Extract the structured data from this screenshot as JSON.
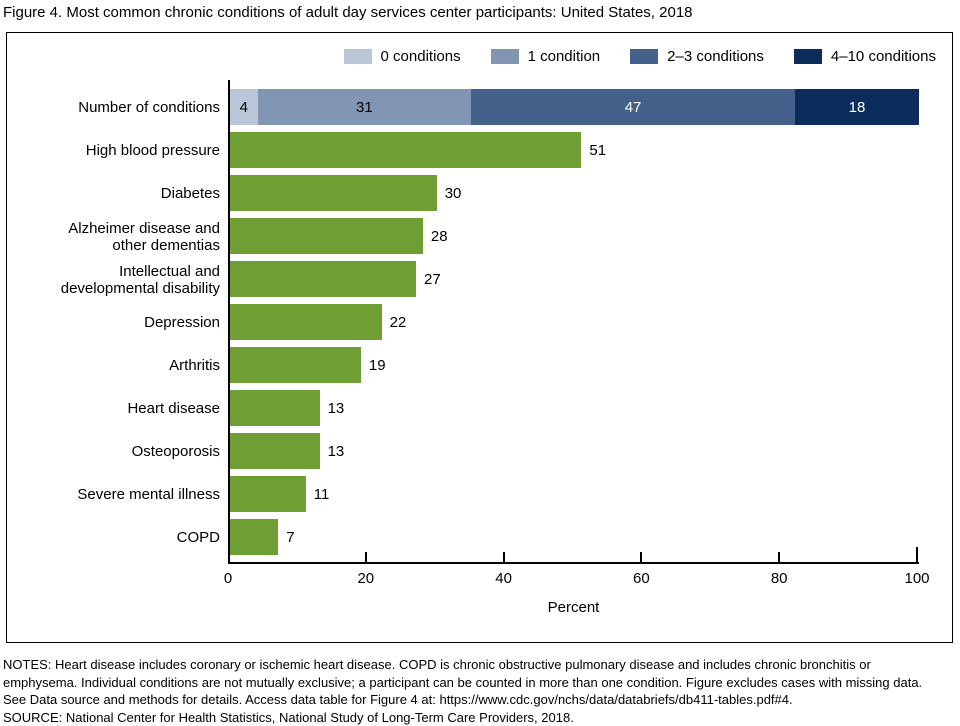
{
  "title": "Figure 4. Most common chronic conditions of adult day services center participants: United States, 2018",
  "legend": {
    "items": [
      {
        "label": "0 conditions",
        "color": "#b8c6d8"
      },
      {
        "label": "1 condition",
        "color": "#8296b3"
      },
      {
        "label": "2–3 conditions",
        "color": "#43618b"
      },
      {
        "label": "4–10 conditions",
        "color": "#0c2c5c"
      }
    ]
  },
  "chart_data": {
    "type": "bar",
    "orientation": "horizontal",
    "xlabel": "Percent",
    "xlim": [
      0,
      100
    ],
    "xticks": [
      0,
      20,
      40,
      60,
      80,
      100
    ],
    "bar_color": "#6f9e35",
    "stacked_row": {
      "label": "Number of conditions",
      "segments": [
        {
          "name": "0 conditions",
          "value": 4,
          "color": "#b8c6d8",
          "text_color": "#000000"
        },
        {
          "name": "1 condition",
          "value": 31,
          "color": "#8296b3",
          "text_color": "#000000"
        },
        {
          "name": "2–3 conditions",
          "value": 47,
          "color": "#43618b",
          "text_color": "#ffffff"
        },
        {
          "name": "4–10 conditions",
          "value": 18,
          "color": "#0c2c5c",
          "text_color": "#ffffff"
        }
      ]
    },
    "categories": [
      "High blood pressure",
      "Diabetes",
      "Alzheimer disease and\nother dementias",
      "Intellectual and\ndevelopmental disability",
      "Depression",
      "Arthritis",
      "Heart disease",
      "Osteoporosis",
      "Severe mental illness",
      "COPD"
    ],
    "values": [
      51,
      30,
      28,
      27,
      22,
      19,
      13,
      13,
      11,
      7
    ]
  },
  "notes": {
    "lines": [
      "NOTES: Heart disease includes coronary or ischemic heart disease. COPD is chronic obstructive pulmonary disease and includes chronic bronchitis or",
      "emphysema. Individual conditions are not mutually exclusive; a participant can be counted in more than one condition. Figure excludes cases with missing data.",
      "See Data source and methods for details. Access data table for Figure 4 at: https://www.cdc.gov/nchs/data/databriefs/db411-tables.pdf#4.",
      "SOURCE: National Center for Health Statistics, National Study of Long-Term Care Providers, 2018."
    ]
  }
}
